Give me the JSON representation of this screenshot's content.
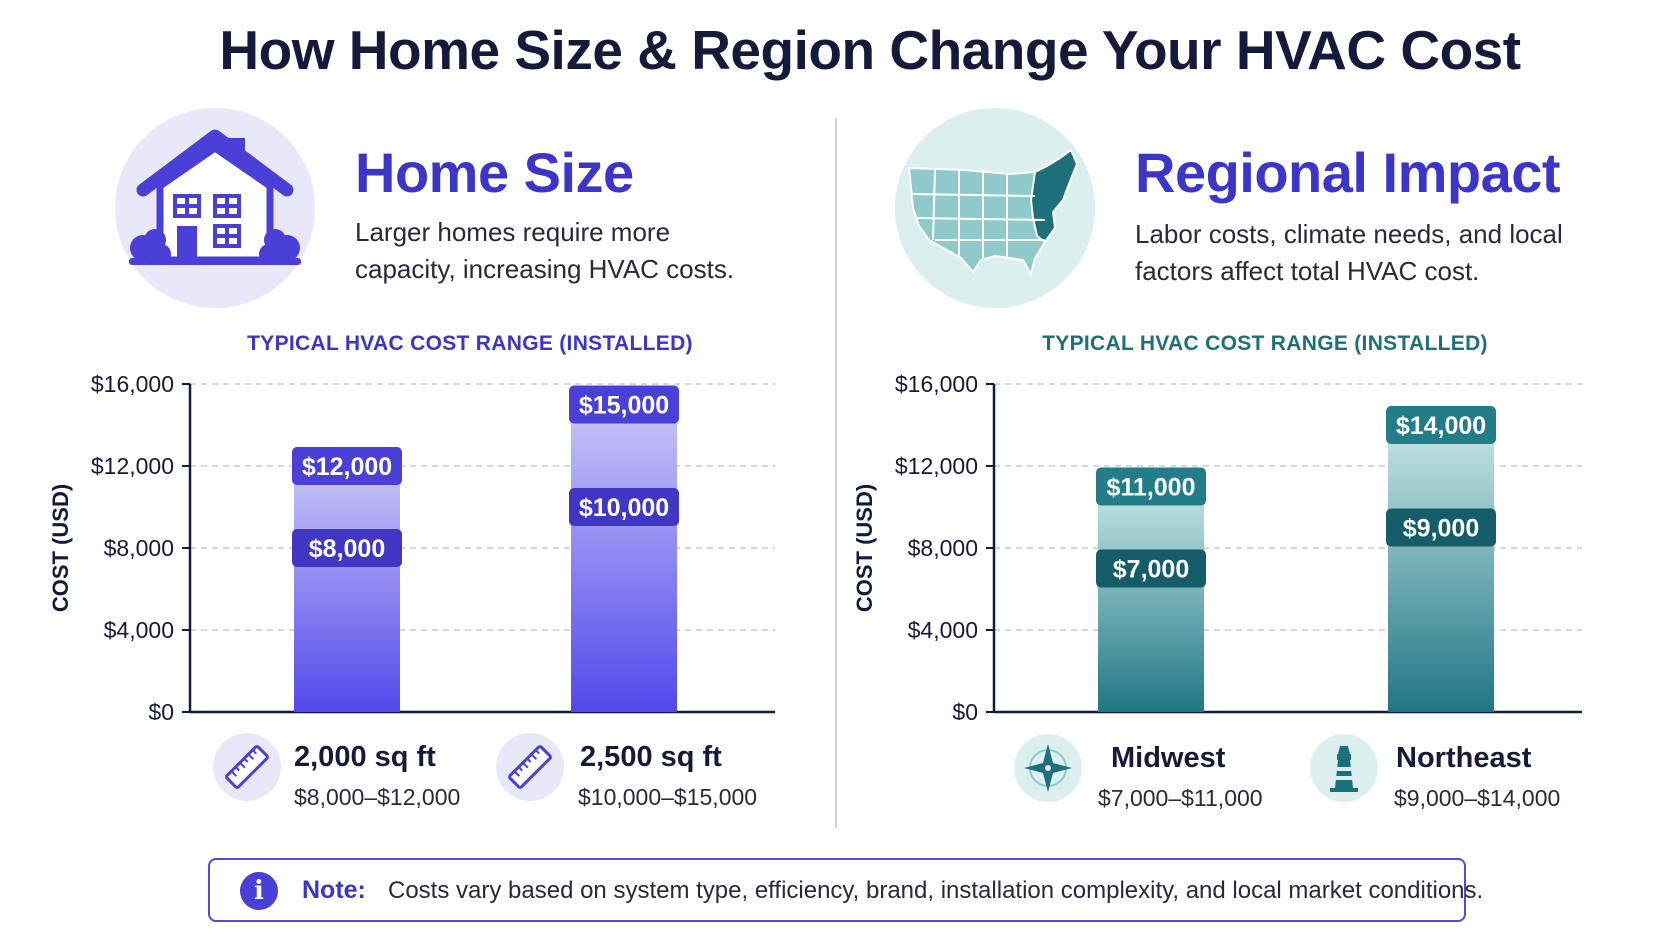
{
  "title": "How Home Size & Region Change Your HVAC Cost",
  "colors": {
    "indigo": "#4a3fd6",
    "teal": "#1e6f7c",
    "dark": "#161a3a"
  },
  "home_section": {
    "title": "Home Size",
    "description_line1": "Larger homes require more",
    "description_line2": "capacity, increasing HVAC costs.",
    "icon": "house-icon",
    "categories": [
      {
        "name": "2,000 sq ft",
        "range": "$8,000–$12,000",
        "icon": "ruler-icon"
      },
      {
        "name": "2,500 sq ft",
        "range": "$10,000–$15,000",
        "icon": "ruler-icon"
      }
    ]
  },
  "region_section": {
    "title": "Regional Impact",
    "description_line1": "Labor costs, climate needs, and local",
    "description_line2": "factors affect total HVAC cost.",
    "icon": "us-map-icon",
    "categories": [
      {
        "name": "Midwest",
        "range": "$7,000–$11,000",
        "icon": "compass-icon"
      },
      {
        "name": "Northeast",
        "range": "$9,000–$14,000",
        "icon": "lighthouse-icon"
      }
    ]
  },
  "chart_data": [
    {
      "type": "bar",
      "title": "TYPICAL HVAC COST RANGE (INSTALLED)",
      "ylabel": "COST (USD)",
      "xlabel": "",
      "ylim": [
        0,
        16000
      ],
      "yticks": [
        0,
        4000,
        8000,
        12000,
        16000
      ],
      "ytick_labels": [
        "$0",
        "$4,000",
        "$8,000",
        "$12,000",
        "$16,000"
      ],
      "grid": true,
      "categories": [
        "2,000 sq ft",
        "2,500 sq ft"
      ],
      "series": [
        {
          "values_low": [
            8000,
            10000
          ],
          "values_high": [
            12000,
            15000
          ]
        }
      ],
      "low_labels": [
        "$8,000",
        "$10,000"
      ],
      "high_labels": [
        "$12,000",
        "$15,000"
      ]
    },
    {
      "type": "bar",
      "title": "TYPICAL HVAC COST RANGE (INSTALLED)",
      "ylabel": "COST (USD)",
      "xlabel": "",
      "ylim": [
        0,
        16000
      ],
      "yticks": [
        0,
        4000,
        8000,
        12000,
        16000
      ],
      "ytick_labels": [
        "$0",
        "$4,000",
        "$8,000",
        "$12,000",
        "$16,000"
      ],
      "grid": true,
      "categories": [
        "Midwest",
        "Northeast"
      ],
      "series": [
        {
          "values_low": [
            7000,
            9000
          ],
          "values_high": [
            11000,
            14000
          ]
        }
      ],
      "low_labels": [
        "$7,000",
        "$9,000"
      ],
      "high_labels": [
        "$11,000",
        "$14,000"
      ]
    }
  ],
  "note": {
    "label": "Note:",
    "text": "Costs vary based on system type, efficiency, brand, installation complexity, and local market conditions.",
    "icon": "info-icon"
  }
}
